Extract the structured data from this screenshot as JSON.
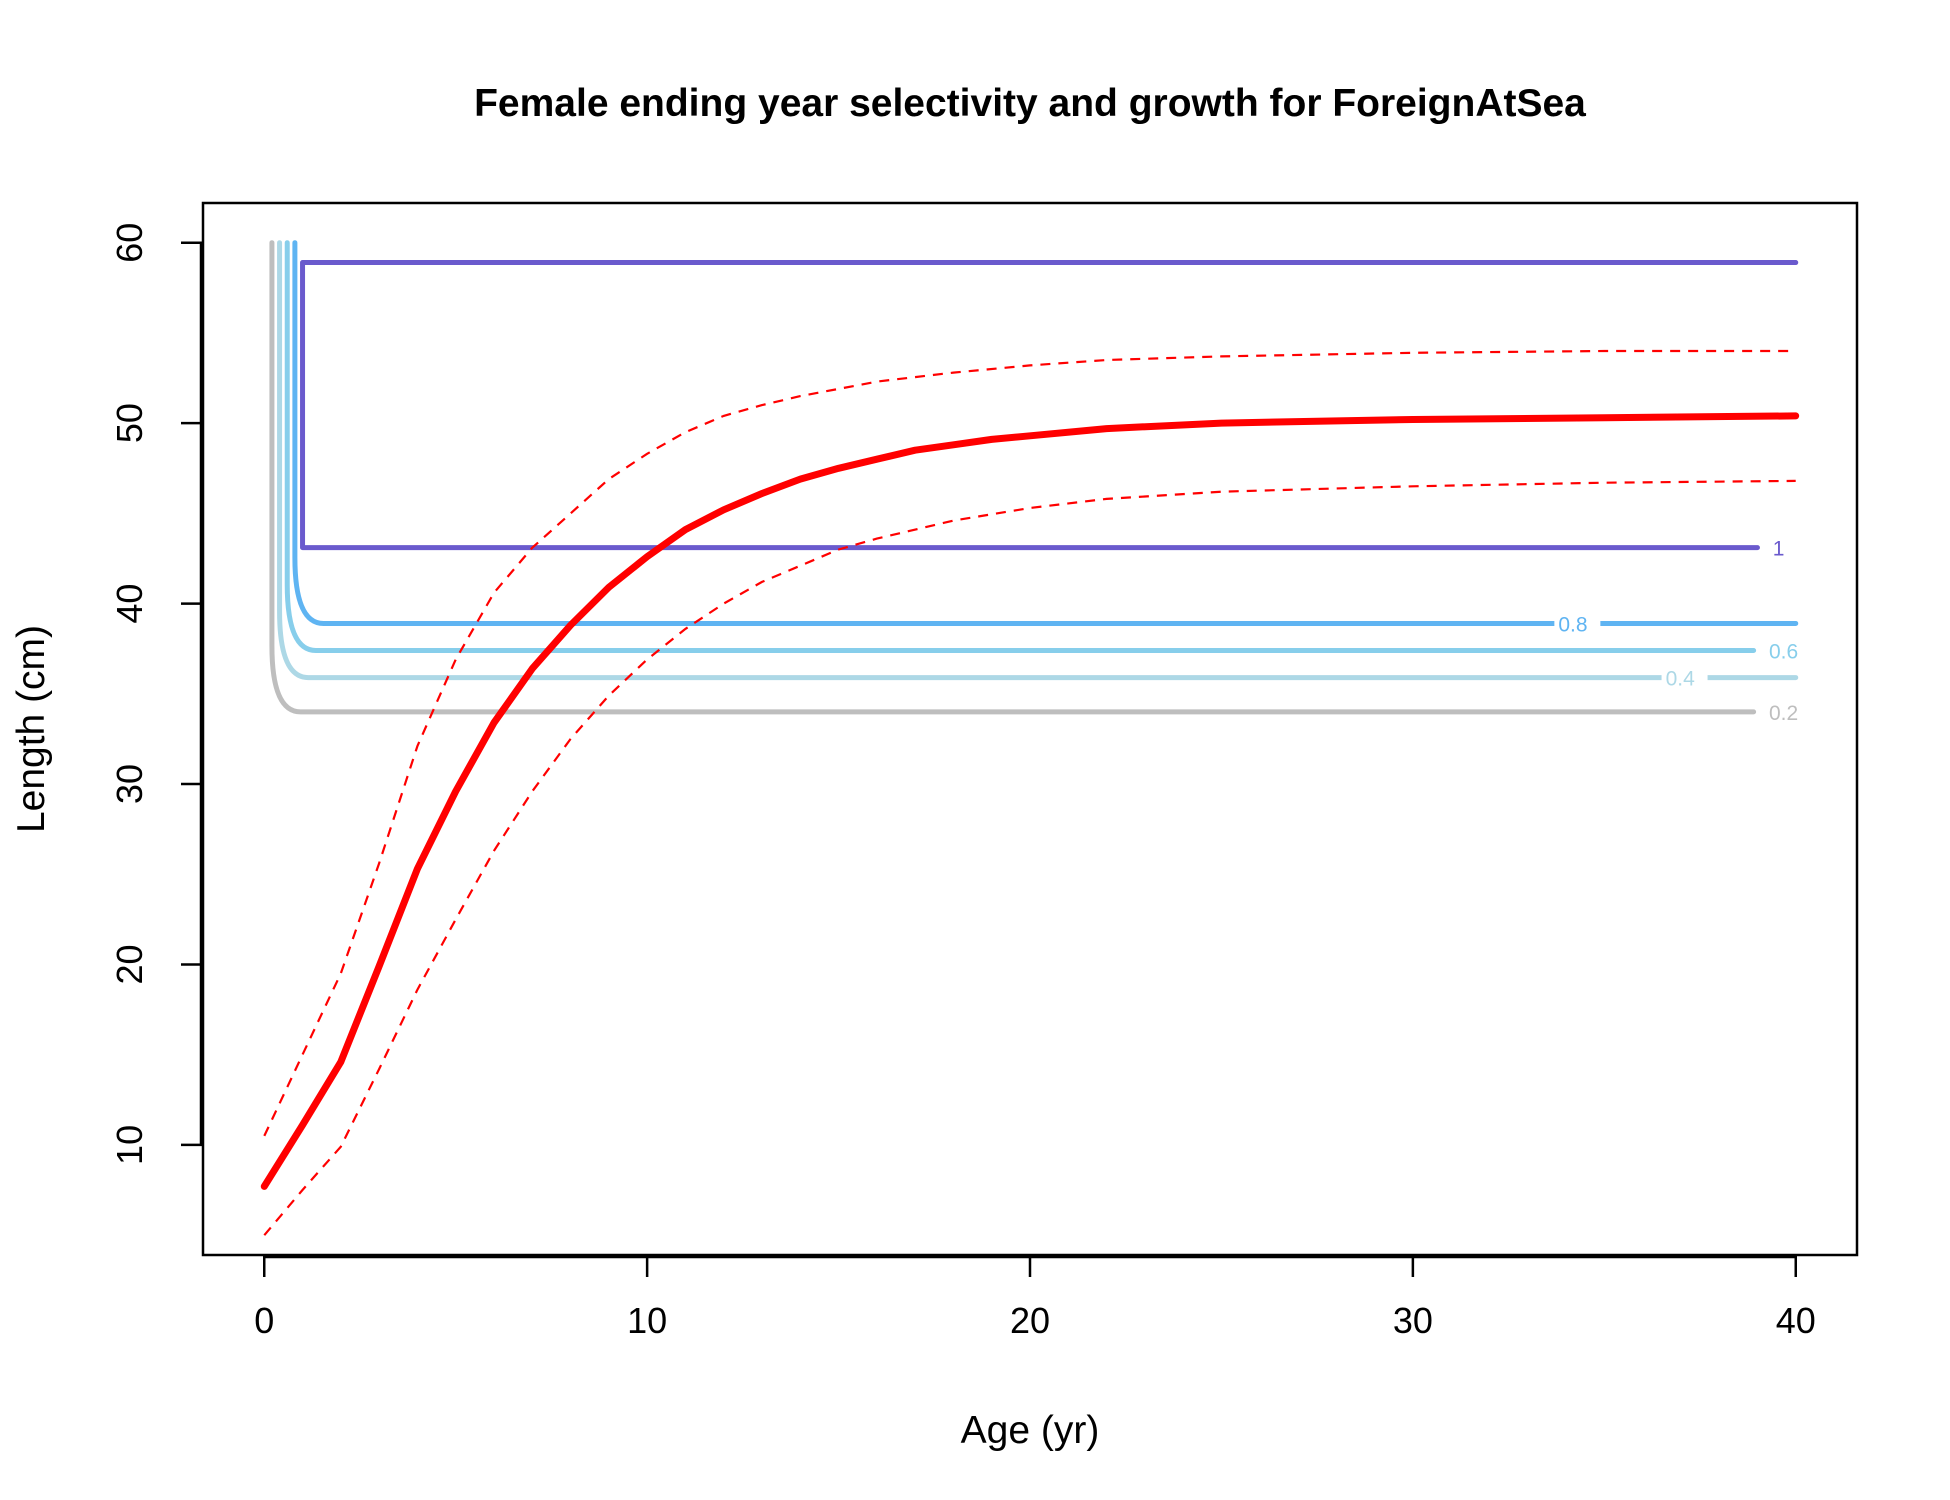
{
  "chart_data": {
    "type": "line",
    "title": "Female ending year selectivity and growth for ForeignAtSea",
    "xlabel": "Age (yr)",
    "ylabel": "Length (cm)",
    "xlim": [
      -1.6,
      41.6
    ],
    "ylim": [
      3.9,
      62.2
    ],
    "x_ticks": [
      0,
      10,
      20,
      30,
      40
    ],
    "y_ticks": [
      10,
      20,
      30,
      40,
      50,
      60
    ],
    "x_tick_labels": [
      "0",
      "10",
      "20",
      "30",
      "40"
    ],
    "y_tick_labels": [
      "10",
      "20",
      "30",
      "40",
      "50",
      "60"
    ],
    "grid": false,
    "growth": {
      "color": "#ff0000",
      "mean": [
        [
          0,
          7.7
        ],
        [
          1,
          11.1
        ],
        [
          2,
          14.6
        ],
        [
          3,
          19.9
        ],
        [
          4,
          25.3
        ],
        [
          5,
          29.6
        ],
        [
          6,
          33.4
        ],
        [
          7,
          36.4
        ],
        [
          8,
          38.8
        ],
        [
          9,
          40.9
        ],
        [
          10,
          42.6
        ],
        [
          11,
          44.1
        ],
        [
          12,
          45.2
        ],
        [
          13,
          46.1
        ],
        [
          14,
          46.9
        ],
        [
          15,
          47.5
        ],
        [
          16,
          48.0
        ],
        [
          17,
          48.5
        ],
        [
          18,
          48.8
        ],
        [
          19,
          49.1
        ],
        [
          20,
          49.3
        ],
        [
          22,
          49.7
        ],
        [
          25,
          50.0
        ],
        [
          30,
          50.2
        ],
        [
          35,
          50.3
        ],
        [
          40,
          50.4
        ]
      ],
      "upper": [
        [
          0,
          10.5
        ],
        [
          1,
          15.0
        ],
        [
          2,
          19.5
        ],
        [
          3,
          25.6
        ],
        [
          4,
          32.1
        ],
        [
          5,
          36.9
        ],
        [
          6,
          40.6
        ],
        [
          7,
          43.1
        ],
        [
          8,
          45.0
        ],
        [
          9,
          46.9
        ],
        [
          10,
          48.3
        ],
        [
          11,
          49.5
        ],
        [
          12,
          50.4
        ],
        [
          13,
          51.0
        ],
        [
          14,
          51.5
        ],
        [
          15,
          51.9
        ],
        [
          16,
          52.3
        ],
        [
          18,
          52.8
        ],
        [
          20,
          53.2
        ],
        [
          22,
          53.5
        ],
        [
          25,
          53.7
        ],
        [
          30,
          53.9
        ],
        [
          35,
          54.0
        ],
        [
          40,
          54.0
        ]
      ],
      "lower": [
        [
          0,
          5.0
        ],
        [
          1,
          7.5
        ],
        [
          2,
          9.9
        ],
        [
          3,
          14.2
        ],
        [
          4,
          18.6
        ],
        [
          5,
          22.5
        ],
        [
          6,
          26.3
        ],
        [
          7,
          29.6
        ],
        [
          8,
          32.5
        ],
        [
          9,
          34.9
        ],
        [
          10,
          36.9
        ],
        [
          11,
          38.6
        ],
        [
          12,
          40.0
        ],
        [
          13,
          41.2
        ],
        [
          14,
          42.1
        ],
        [
          15,
          43.0
        ],
        [
          16,
          43.6
        ],
        [
          18,
          44.6
        ],
        [
          20,
          45.3
        ],
        [
          22,
          45.8
        ],
        [
          25,
          46.2
        ],
        [
          30,
          46.5
        ],
        [
          35,
          46.7
        ],
        [
          40,
          46.8
        ]
      ]
    },
    "selectivity_contours": [
      {
        "level": "0.2",
        "color": "#bebebe",
        "x0": 0.2,
        "bottom": 34.0,
        "top": 60.0,
        "x_end": 38.9,
        "label_x": 39.3,
        "label_y": 34.0
      },
      {
        "level": "0.4",
        "color": "#add8e6",
        "x0": 0.4,
        "bottom": 35.9,
        "top": 60.0,
        "x_end": 40.0,
        "label_x": 36.6,
        "label_y": 35.9
      },
      {
        "level": "0.6",
        "color": "#87ceeb",
        "x0": 0.6,
        "bottom": 37.4,
        "top": 60.0,
        "x_end": 38.9,
        "label_x": 39.3,
        "label_y": 37.4
      },
      {
        "level": "0.8",
        "color": "#5fb4f2",
        "x0": 0.8,
        "bottom": 38.9,
        "top": 60.0,
        "x_end": 40.0,
        "label_x": 33.8,
        "label_y": 38.9
      },
      {
        "level": "1",
        "color": "#6a5acd",
        "x0": 1.0,
        "bottom": 43.1,
        "top": 58.9,
        "x_end": 39.0,
        "label_x": 39.4,
        "label_y": 43.1,
        "top_x_end": 40.0
      }
    ]
  }
}
